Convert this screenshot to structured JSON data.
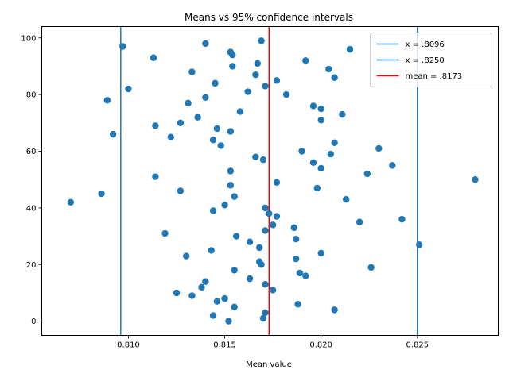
{
  "chart_data": {
    "type": "scatter",
    "title": "Means vs 95% confidence intervals",
    "xlabel": "Mean value",
    "ylabel": "",
    "xlim": [
      0.8055,
      0.8292
    ],
    "ylim": [
      -5,
      104
    ],
    "x_ticks": [
      0.81,
      0.815,
      0.82,
      0.825
    ],
    "x_tick_labels": [
      "0.810",
      "0.815",
      "0.820",
      "0.825"
    ],
    "y_ticks": [
      0,
      20,
      40,
      60,
      80,
      100
    ],
    "y_tick_labels": [
      "0",
      "20",
      "40",
      "60",
      "80",
      "100"
    ],
    "grid": false,
    "legend_position": "top-right",
    "colors": {
      "points": "#1f77b4",
      "interval_lines": "#1f77b4",
      "mean_line": "#ff0000"
    },
    "reference_lines": [
      {
        "label": "x = .8096",
        "x": 0.8096,
        "color": "#1f77b4"
      },
      {
        "label": "x = .8250",
        "x": 0.825,
        "color": "#1f77b4"
      },
      {
        "label": "mean = .8173",
        "x": 0.8173,
        "color": "#ff0000"
      }
    ],
    "points": [
      {
        "x": 0.8169,
        "y": 99
      },
      {
        "x": 0.8097,
        "y": 97
      },
      {
        "x": 0.814,
        "y": 98
      },
      {
        "x": 0.8153,
        "y": 95
      },
      {
        "x": 0.8215,
        "y": 96
      },
      {
        "x": 0.8113,
        "y": 93
      },
      {
        "x": 0.8154,
        "y": 94
      },
      {
        "x": 0.8167,
        "y": 91
      },
      {
        "x": 0.8192,
        "y": 92
      },
      {
        "x": 0.8154,
        "y": 90
      },
      {
        "x": 0.8204,
        "y": 89
      },
      {
        "x": 0.8133,
        "y": 88
      },
      {
        "x": 0.8166,
        "y": 87
      },
      {
        "x": 0.8207,
        "y": 86
      },
      {
        "x": 0.8177,
        "y": 85
      },
      {
        "x": 0.8145,
        "y": 84
      },
      {
        "x": 0.8171,
        "y": 83
      },
      {
        "x": 0.81,
        "y": 82
      },
      {
        "x": 0.8162,
        "y": 81
      },
      {
        "x": 0.8182,
        "y": 80
      },
      {
        "x": 0.814,
        "y": 79
      },
      {
        "x": 0.8089,
        "y": 78
      },
      {
        "x": 0.8131,
        "y": 77
      },
      {
        "x": 0.8196,
        "y": 76
      },
      {
        "x": 0.82,
        "y": 75
      },
      {
        "x": 0.8158,
        "y": 74
      },
      {
        "x": 0.8211,
        "y": 73
      },
      {
        "x": 0.8136,
        "y": 72
      },
      {
        "x": 0.82,
        "y": 71
      },
      {
        "x": 0.8127,
        "y": 70
      },
      {
        "x": 0.8114,
        "y": 69
      },
      {
        "x": 0.8146,
        "y": 68
      },
      {
        "x": 0.8153,
        "y": 67
      },
      {
        "x": 0.8092,
        "y": 66
      },
      {
        "x": 0.8122,
        "y": 65
      },
      {
        "x": 0.8144,
        "y": 64
      },
      {
        "x": 0.8207,
        "y": 63
      },
      {
        "x": 0.8148,
        "y": 62
      },
      {
        "x": 0.823,
        "y": 61
      },
      {
        "x": 0.819,
        "y": 60
      },
      {
        "x": 0.8205,
        "y": 59
      },
      {
        "x": 0.8166,
        "y": 58
      },
      {
        "x": 0.817,
        "y": 57
      },
      {
        "x": 0.8196,
        "y": 56
      },
      {
        "x": 0.8237,
        "y": 55
      },
      {
        "x": 0.82,
        "y": 54
      },
      {
        "x": 0.8153,
        "y": 53
      },
      {
        "x": 0.8224,
        "y": 52
      },
      {
        "x": 0.8114,
        "y": 51
      },
      {
        "x": 0.828,
        "y": 50
      },
      {
        "x": 0.8177,
        "y": 49
      },
      {
        "x": 0.8153,
        "y": 48
      },
      {
        "x": 0.8198,
        "y": 47
      },
      {
        "x": 0.8127,
        "y": 46
      },
      {
        "x": 0.8086,
        "y": 45
      },
      {
        "x": 0.8155,
        "y": 44
      },
      {
        "x": 0.8213,
        "y": 43
      },
      {
        "x": 0.807,
        "y": 42
      },
      {
        "x": 0.815,
        "y": 41
      },
      {
        "x": 0.8171,
        "y": 40
      },
      {
        "x": 0.8144,
        "y": 39
      },
      {
        "x": 0.8173,
        "y": 38
      },
      {
        "x": 0.8177,
        "y": 37
      },
      {
        "x": 0.8242,
        "y": 36
      },
      {
        "x": 0.822,
        "y": 35
      },
      {
        "x": 0.8175,
        "y": 34
      },
      {
        "x": 0.8186,
        "y": 33
      },
      {
        "x": 0.8171,
        "y": 32
      },
      {
        "x": 0.8119,
        "y": 31
      },
      {
        "x": 0.8156,
        "y": 30
      },
      {
        "x": 0.8187,
        "y": 29
      },
      {
        "x": 0.8163,
        "y": 28
      },
      {
        "x": 0.8251,
        "y": 27
      },
      {
        "x": 0.8168,
        "y": 26
      },
      {
        "x": 0.8143,
        "y": 25
      },
      {
        "x": 0.82,
        "y": 24
      },
      {
        "x": 0.813,
        "y": 23
      },
      {
        "x": 0.8187,
        "y": 22
      },
      {
        "x": 0.8168,
        "y": 21
      },
      {
        "x": 0.8169,
        "y": 20
      },
      {
        "x": 0.8226,
        "y": 19
      },
      {
        "x": 0.8155,
        "y": 18
      },
      {
        "x": 0.8189,
        "y": 17
      },
      {
        "x": 0.8192,
        "y": 16
      },
      {
        "x": 0.8163,
        "y": 15
      },
      {
        "x": 0.814,
        "y": 14
      },
      {
        "x": 0.8171,
        "y": 13
      },
      {
        "x": 0.8138,
        "y": 12
      },
      {
        "x": 0.8175,
        "y": 11
      },
      {
        "x": 0.8125,
        "y": 10
      },
      {
        "x": 0.8133,
        "y": 9
      },
      {
        "x": 0.815,
        "y": 8
      },
      {
        "x": 0.8146,
        "y": 7
      },
      {
        "x": 0.8188,
        "y": 6
      },
      {
        "x": 0.8155,
        "y": 5
      },
      {
        "x": 0.8207,
        "y": 4
      },
      {
        "x": 0.8171,
        "y": 3
      },
      {
        "x": 0.8144,
        "y": 2
      },
      {
        "x": 0.817,
        "y": 1
      },
      {
        "x": 0.8152,
        "y": 0
      }
    ]
  }
}
